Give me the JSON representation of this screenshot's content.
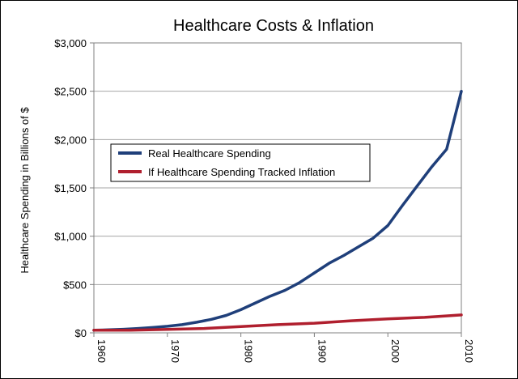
{
  "chart_data": {
    "type": "line",
    "title": "Healthcare Costs & Inflation",
    "xlabel": "",
    "ylabel": "Healthcare Spending in Billions of $",
    "xlim": [
      1960,
      2010
    ],
    "ylim": [
      0,
      3000
    ],
    "x_ticks": [
      1960,
      1970,
      1980,
      1990,
      2000,
      2010
    ],
    "x_tick_labels": [
      "1960",
      "1970",
      "1980",
      "1990",
      "2000",
      "2010"
    ],
    "y_ticks": [
      0,
      500,
      1000,
      1500,
      2000,
      2500,
      3000
    ],
    "y_tick_labels": [
      "$0",
      "$500",
      "$1,000",
      "$1,500",
      "$2,000",
      "$2,500",
      "$3,000"
    ],
    "grid": true,
    "legend_position": "center-left",
    "series": [
      {
        "name": "Real Healthcare Spending",
        "color": "#1f3f7a",
        "x": [
          1960,
          1962,
          1964,
          1966,
          1968,
          1970,
          1972,
          1974,
          1976,
          1978,
          1980,
          1982,
          1984,
          1986,
          1988,
          1990,
          1992,
          1994,
          1996,
          1998,
          2000,
          2002,
          2004,
          2006,
          2008,
          2010
        ],
        "values": [
          27,
          31,
          37,
          45,
          55,
          68,
          85,
          110,
          140,
          180,
          240,
          310,
          380,
          440,
          520,
          620,
          720,
          800,
          890,
          980,
          1110,
          1320,
          1520,
          1720,
          1900,
          2500
        ]
      },
      {
        "name": "If Healthcare Spending Tracked Inflation",
        "color": "#b01f2e",
        "x": [
          1960,
          1965,
          1970,
          1975,
          1980,
          1985,
          1990,
          1995,
          2000,
          2005,
          2010
        ],
        "values": [
          27,
          28,
          35,
          45,
          65,
          85,
          100,
          125,
          145,
          160,
          185
        ]
      }
    ]
  }
}
